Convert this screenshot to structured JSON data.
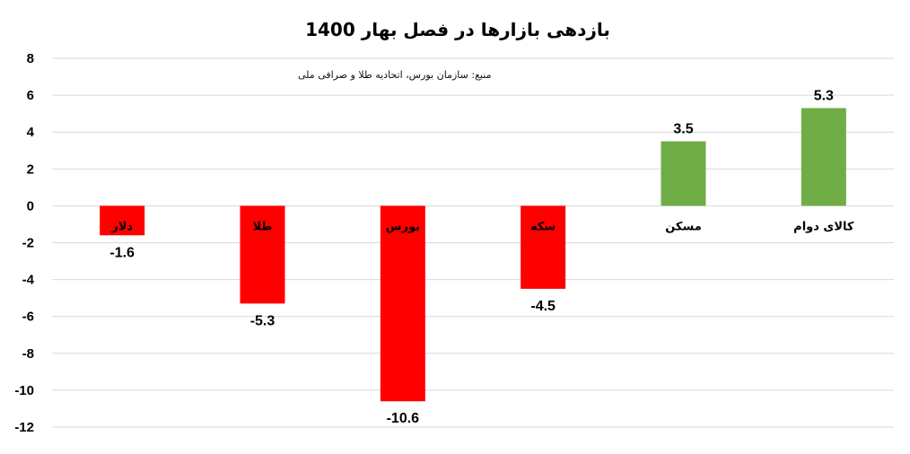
{
  "chart_data": {
    "type": "bar",
    "title": "بازدهی بازارها در فصل بهار 1400",
    "source_note": "منبع: سازمان بورس، اتحادیه طلا و صرافی ملی",
    "categories": [
      "دلار",
      "طلا",
      "بورس",
      "سکه",
      "مسکن",
      "کالای دوام"
    ],
    "values": [
      -1.6,
      -5.3,
      -10.6,
      -4.5,
      3.5,
      5.3
    ],
    "data_labels": [
      "-1.6",
      "-5.3",
      "-10.6",
      "-4.5",
      "3.5",
      "5.3"
    ],
    "ylim": [
      -12,
      8
    ],
    "yticks": [
      8,
      6,
      4,
      2,
      0,
      -2,
      -4,
      -6,
      -8,
      -10,
      -12
    ],
    "xlabel": "",
    "ylabel": "",
    "grid": true,
    "legend": "none",
    "colors": {
      "negative": "#ff0000",
      "positive": "#70ad47",
      "grid": "#d9d9d9"
    }
  }
}
